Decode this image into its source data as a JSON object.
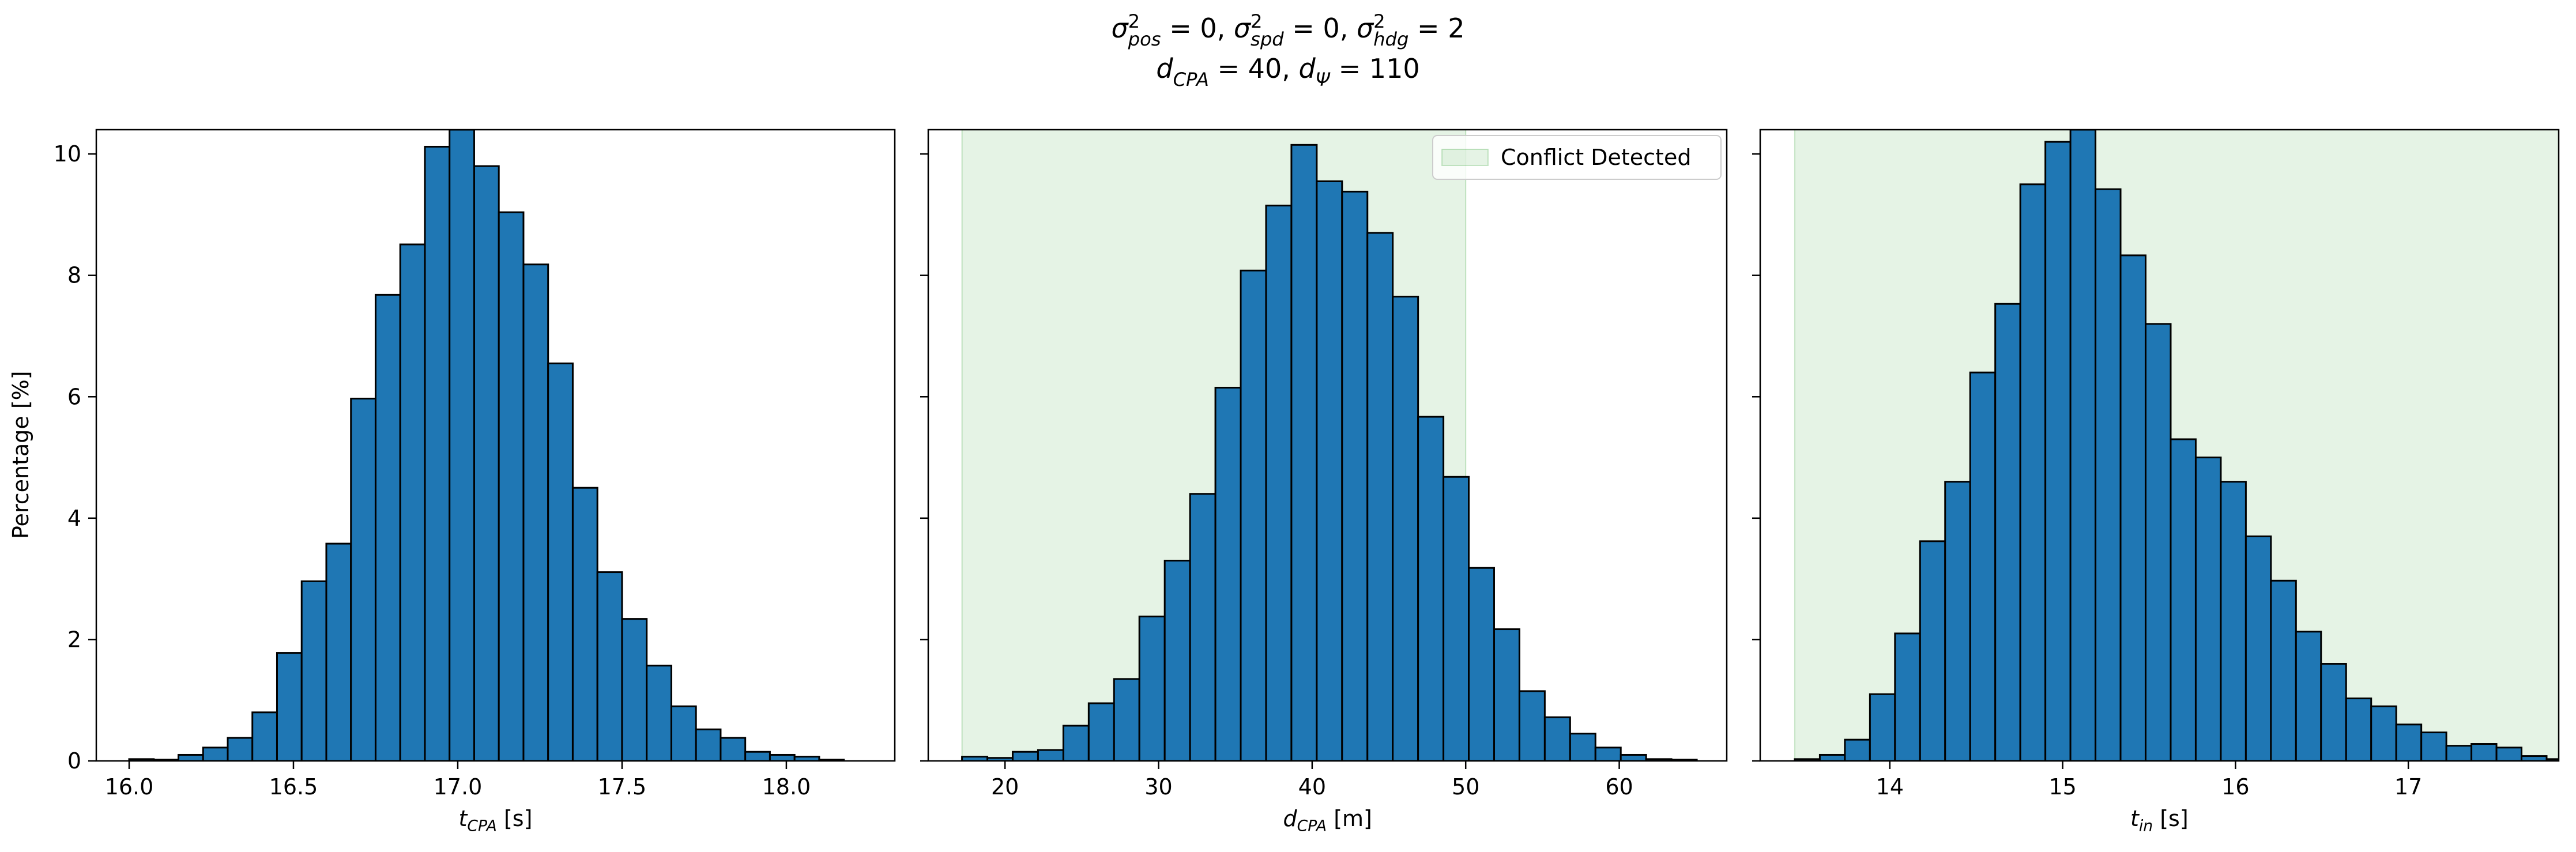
{
  "title": {
    "line1": [
      {
        "sym": "σ",
        "sup": "2",
        "sub": "pos",
        "eq": " = 0, "
      },
      {
        "sym": "σ",
        "sup": "2",
        "sub": "spd",
        "eq": " = 0, "
      },
      {
        "sym": "σ",
        "sup": "2",
        "sub": "hdg",
        "eq": " = 2"
      }
    ],
    "line2": [
      {
        "sym": "d",
        "sub": "CPA",
        "eq": " = 40, "
      },
      {
        "sym": "d",
        "sub": "Ψ",
        "eq": " = 110"
      }
    ]
  },
  "ylabel": "Percentage [%]",
  "colors": {
    "bar": "#1f77b4",
    "edge": "#000000",
    "shade": "#2ca02c"
  },
  "chart_data": [
    {
      "type": "bar",
      "xlabel_sym": "t",
      "xlabel_sub": "CPA",
      "xlabel_unit": " [s]",
      "xlim": [
        15.9,
        18.33
      ],
      "ylim": [
        0,
        10.4
      ],
      "xticks": [
        16.0,
        16.5,
        17.0,
        17.5,
        18.0
      ],
      "xtick_labels": [
        "16.0",
        "16.5",
        "17.0",
        "17.5",
        "18.0"
      ],
      "yticks": [
        0,
        2,
        4,
        6,
        8,
        10
      ],
      "bin_start": 16.0,
      "bin_width": 0.075,
      "values": [
        0.03,
        0.02,
        0.1,
        0.22,
        0.38,
        0.8,
        1.78,
        2.96,
        3.58,
        5.97,
        7.68,
        8.51,
        10.12,
        10.4,
        9.8,
        9.04,
        8.18,
        6.55,
        4.5,
        3.11,
        2.34,
        1.57,
        0.9,
        0.52,
        0.38,
        0.15,
        0.1,
        0.07,
        0.02
      ]
    },
    {
      "type": "bar",
      "xlabel_sym": "d",
      "xlabel_sub": "CPA",
      "xlabel_unit": " [m]",
      "xlim": [
        15.0,
        67.0
      ],
      "ylim": [
        0,
        10.4
      ],
      "xticks": [
        20,
        30,
        40,
        50,
        60
      ],
      "xtick_labels": [
        "20",
        "30",
        "40",
        "50",
        "60"
      ],
      "yticks": [
        0,
        2,
        4,
        6,
        8,
        10
      ],
      "bin_start": 17.2,
      "bin_width": 1.65,
      "values": [
        0.07,
        0.05,
        0.15,
        0.18,
        0.58,
        0.95,
        1.35,
        2.38,
        3.3,
        4.4,
        6.15,
        8.08,
        9.15,
        10.15,
        9.55,
        9.38,
        8.7,
        7.65,
        5.67,
        4.68,
        3.18,
        2.17,
        1.15,
        0.72,
        0.45,
        0.22,
        0.1,
        0.03,
        0.02
      ],
      "shade": {
        "x0": 17.2,
        "x1": 50.0
      },
      "legend": {
        "label": "Conflict Detected",
        "loc": "upper right"
      }
    },
    {
      "type": "bar",
      "xlabel_sym": "t",
      "xlabel_sub": "in",
      "xlabel_unit": " [s]",
      "xlim": [
        13.25,
        17.87
      ],
      "ylim": [
        0,
        10.4
      ],
      "xticks": [
        14,
        15,
        16,
        17
      ],
      "xtick_labels": [
        "14",
        "15",
        "16",
        "17"
      ],
      "yticks": [
        0,
        2,
        4,
        6,
        8,
        10
      ],
      "bin_start": 13.45,
      "bin_width": 0.145,
      "values": [
        0.03,
        0.1,
        0.35,
        1.1,
        2.1,
        3.62,
        4.6,
        6.4,
        7.53,
        9.5,
        10.2,
        10.4,
        9.42,
        8.33,
        7.2,
        5.3,
        5.0,
        4.6,
        3.7,
        2.97,
        2.13,
        1.6,
        1.03,
        0.9,
        0.6,
        0.47,
        0.25,
        0.28,
        0.22,
        0.08,
        0.03,
        0.01,
        0.02
      ],
      "shade": {
        "x0": 13.45,
        "x1": 17.87
      }
    }
  ]
}
